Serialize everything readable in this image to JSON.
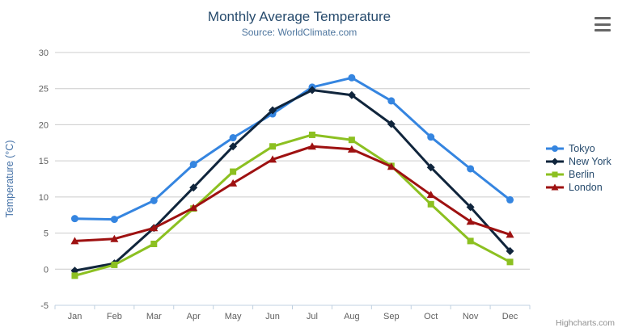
{
  "header": {
    "title": "Monthly Average Temperature",
    "subtitle": "Source: WorldClimate.com",
    "menu_icon": "hamburger-icon"
  },
  "credits": "Highcharts.com",
  "colors": {
    "title": "#274b6d",
    "subtitle": "#4d759e",
    "axis_labels": "#606060",
    "axis_line": "#c0d0e0",
    "gridline": "#cccccc",
    "y_axis_title": "#4572a7",
    "legend_text": "#274b6d",
    "menu_icon": "#666666"
  },
  "chart_data": {
    "type": "line",
    "title": "Monthly Average Temperature",
    "subtitle": "Source: WorldClimate.com",
    "xlabel": "",
    "ylabel": "Temperature (°C)",
    "ylim": [
      -5,
      30
    ],
    "ytick_step": 5,
    "grid": true,
    "legend_position": "right",
    "categories": [
      "Jan",
      "Feb",
      "Mar",
      "Apr",
      "May",
      "Jun",
      "Jul",
      "Aug",
      "Sep",
      "Oct",
      "Nov",
      "Dec"
    ],
    "series": [
      {
        "name": "Tokyo",
        "color": "#3585e0",
        "marker": "circle",
        "values": [
          7.0,
          6.9,
          9.5,
          14.5,
          18.2,
          21.5,
          25.2,
          26.5,
          23.3,
          18.3,
          13.9,
          9.6
        ]
      },
      {
        "name": "New York",
        "color": "#10253c",
        "marker": "diamond",
        "values": [
          -0.2,
          0.8,
          5.7,
          11.3,
          17.0,
          22.0,
          24.8,
          24.1,
          20.1,
          14.1,
          8.6,
          2.5
        ]
      },
      {
        "name": "Berlin",
        "color": "#8cc021",
        "marker": "square",
        "values": [
          -0.9,
          0.6,
          3.5,
          8.4,
          13.5,
          17.0,
          18.6,
          17.9,
          14.3,
          9.0,
          3.9,
          1.0
        ]
      },
      {
        "name": "London",
        "color": "#9e1111",
        "marker": "triangle",
        "values": [
          3.9,
          4.2,
          5.7,
          8.5,
          11.9,
          15.2,
          17.0,
          16.6,
          14.2,
          10.3,
          6.6,
          4.8
        ]
      }
    ]
  }
}
